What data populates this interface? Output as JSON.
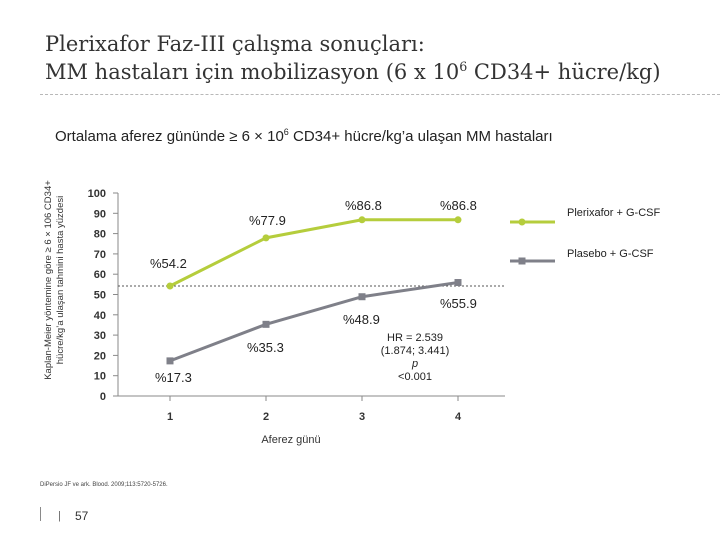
{
  "slide": {
    "title_line1": "Plerixafor Faz-III çalışma sonuçları:",
    "title_line2_main": "MM hastaları için mobilizasyon (6 x 10",
    "title_line2_sup": "6",
    "title_line2_end": " CD34+ hücre/kg)",
    "subtitle_main": "Ortalama aferez gününde ≥ 6  × 10",
    "subtitle_sup": "6",
    "subtitle_end": " CD34+ hücre/kg’a ulaşan MM hastaları",
    "ylabel_line1": "Kaplan-Meier yöntemine göre  ≥ 6 × 106 CD34+",
    "ylabel_line2": "hücre/kg’a ulaşan tahmini hasta yüzdesi",
    "stats_line1": "HR = 2.539",
    "stats_line2": "(1.874; 3.441)",
    "stats_p": "p",
    "stats_p_rest": " <0.001",
    "footnote": "DiPersio JF ve ark. Blood. 2009;113:5720-5726.",
    "page_sep": "|",
    "page_number": "57"
  },
  "chart_data": {
    "type": "line",
    "xlabel": "Aferez günü",
    "x": [
      1,
      2,
      3,
      4
    ],
    "xticks": [
      "1",
      "2",
      "3",
      "4"
    ],
    "yticks": [
      "0",
      "10",
      "20",
      "30",
      "40",
      "50",
      "60",
      "70",
      "80",
      "90",
      "100"
    ],
    "ylim": [
      0,
      100
    ],
    "reference_line_y": 54.2,
    "legend_position": "right",
    "series": [
      {
        "name": "Plerixafor  + G-CSF",
        "color": "#b5cd3c",
        "values": [
          54.2,
          77.9,
          86.8,
          86.8
        ],
        "labels": [
          "%54.2",
          "%77.9",
          "%86.8",
          "%86.8"
        ]
      },
      {
        "name": "Plasebo + G-CSF",
        "color": "#7f8089",
        "values": [
          17.3,
          35.3,
          48.9,
          55.9
        ],
        "labels": [
          "%17.3",
          "%35.3",
          "%48.9",
          "%55.9"
        ]
      }
    ]
  }
}
